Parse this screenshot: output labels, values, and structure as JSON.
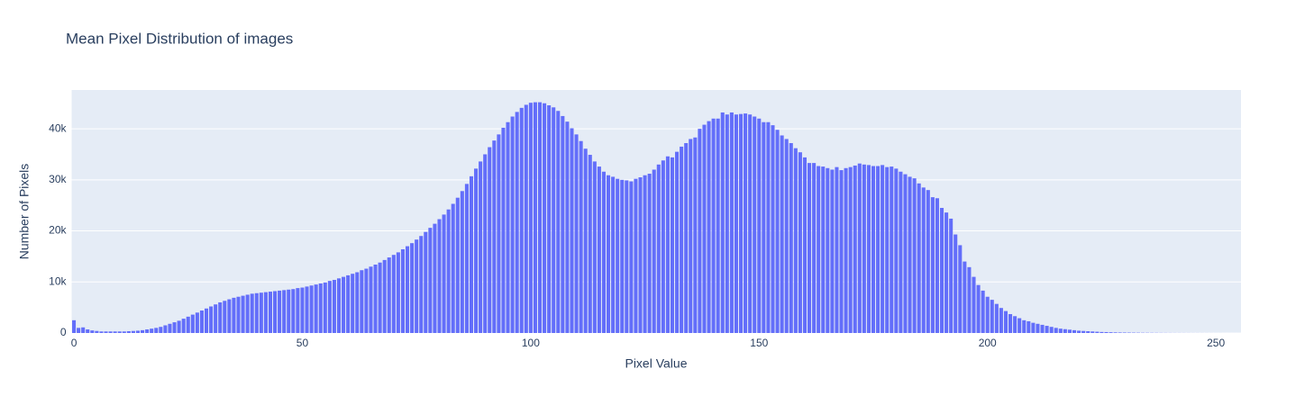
{
  "chart_data": {
    "type": "bar",
    "title": "Mean Pixel Distribution of images",
    "x_label": "Pixel Value",
    "y_label": "Number of Pixels",
    "color": "#636efa",
    "grid": true,
    "xlim": [
      -0.5,
      255.5
    ],
    "xticks": [
      0,
      50,
      100,
      150,
      200,
      250
    ],
    "ylim": [
      0,
      47600
    ],
    "yticks": [
      0,
      {
        "value": 10000,
        "label": "10k"
      },
      {
        "value": 20000,
        "label": "20k"
      },
      {
        "value": 30000,
        "label": "30k"
      },
      {
        "value": 40000,
        "label": "40k"
      }
    ],
    "x": [
      0,
      1,
      2,
      3,
      4,
      5,
      6,
      7,
      8,
      9,
      10,
      11,
      12,
      13,
      14,
      15,
      16,
      17,
      18,
      19,
      20,
      21,
      22,
      23,
      24,
      25,
      26,
      27,
      28,
      29,
      30,
      31,
      32,
      33,
      34,
      35,
      36,
      37,
      38,
      39,
      40,
      41,
      42,
      43,
      44,
      45,
      46,
      47,
      48,
      49,
      50,
      51,
      52,
      53,
      54,
      55,
      56,
      57,
      58,
      59,
      60,
      61,
      62,
      63,
      64,
      65,
      66,
      67,
      68,
      69,
      70,
      71,
      72,
      73,
      74,
      75,
      76,
      77,
      78,
      79,
      80,
      81,
      82,
      83,
      84,
      85,
      86,
      87,
      88,
      89,
      90,
      91,
      92,
      93,
      94,
      95,
      96,
      97,
      98,
      99,
      100,
      101,
      102,
      103,
      104,
      105,
      106,
      107,
      108,
      109,
      110,
      111,
      112,
      113,
      114,
      115,
      116,
      117,
      118,
      119,
      120,
      121,
      122,
      123,
      124,
      125,
      126,
      127,
      128,
      129,
      130,
      131,
      132,
      133,
      134,
      135,
      136,
      137,
      138,
      139,
      140,
      141,
      142,
      143,
      144,
      145,
      146,
      147,
      148,
      149,
      150,
      151,
      152,
      153,
      154,
      155,
      156,
      157,
      158,
      159,
      160,
      161,
      162,
      163,
      164,
      165,
      166,
      167,
      168,
      169,
      170,
      171,
      172,
      173,
      174,
      175,
      176,
      177,
      178,
      179,
      180,
      181,
      182,
      183,
      184,
      185,
      186,
      187,
      188,
      189,
      190,
      191,
      192,
      193,
      194,
      195,
      196,
      197,
      198,
      199,
      200,
      201,
      202,
      203,
      204,
      205,
      206,
      207,
      208,
      209,
      210,
      211,
      212,
      213,
      214,
      215,
      216,
      217,
      218,
      219,
      220,
      221,
      222,
      223,
      224,
      225,
      226,
      227,
      228,
      229,
      230,
      231,
      232,
      233,
      234,
      235,
      236,
      237,
      238,
      239,
      240,
      241,
      242,
      243,
      244,
      245,
      246,
      247,
      248,
      249,
      250,
      251,
      252,
      253,
      254,
      255
    ],
    "values": [
      2500,
      1000,
      1100,
      700,
      500,
      400,
      300,
      300,
      300,
      300,
      300,
      300,
      350,
      400,
      450,
      550,
      700,
      850,
      1000,
      1200,
      1500,
      1800,
      2100,
      2400,
      2800,
      3200,
      3600,
      4000,
      4400,
      4800,
      5200,
      5600,
      6000,
      6300,
      6600,
      6900,
      7100,
      7300,
      7500,
      7700,
      7800,
      7900,
      8000,
      8100,
      8200,
      8300,
      8400,
      8500,
      8600,
      8800,
      8900,
      9100,
      9300,
      9500,
      9700,
      9900,
      10200,
      10400,
      10700,
      11000,
      11300,
      11600,
      11900,
      12300,
      12600,
      13000,
      13400,
      13800,
      14300,
      14800,
      15300,
      15800,
      16400,
      17000,
      17600,
      18300,
      19000,
      19800,
      20600,
      21400,
      22300,
      23200,
      24200,
      25300,
      26500,
      27800,
      29200,
      30700,
      32200,
      33600,
      35000,
      36400,
      37700,
      38900,
      40200,
      41300,
      42400,
      43300,
      44100,
      44700,
      45100,
      45200,
      45200,
      45000,
      44600,
      44200,
      43500,
      42500,
      41400,
      40100,
      38900,
      37600,
      36100,
      34900,
      33600,
      32600,
      31600,
      30900,
      30600,
      30200,
      30000,
      29900,
      29700,
      30200,
      30500,
      30900,
      31200,
      32000,
      33000,
      33800,
      34600,
      34400,
      35500,
      36500,
      37200,
      38000,
      38300,
      40000,
      40800,
      41500,
      42000,
      42000,
      43200,
      42800,
      43200,
      42800,
      42900,
      43000,
      42800,
      42400,
      42000,
      41300,
      41300,
      40700,
      39800,
      38700,
      38000,
      37200,
      36200,
      35400,
      34400,
      33300,
      33300,
      32700,
      32600,
      32300,
      32000,
      32500,
      31900,
      32300,
      32500,
      32800,
      33200,
      33000,
      32900,
      32700,
      32700,
      32900,
      32500,
      32600,
      32200,
      31600,
      31100,
      30600,
      30300,
      29300,
      28500,
      28000,
      26600,
      26400,
      24500,
      23600,
      22400,
      19300,
      17200,
      14000,
      12900,
      11000,
      9400,
      8300,
      7100,
      6500,
      5700,
      4900,
      4300,
      3700,
      3300,
      2900,
      2500,
      2300,
      2000,
      1800,
      1600,
      1400,
      1200,
      1000,
      850,
      750,
      650,
      550,
      450,
      400,
      350,
      300,
      250,
      200,
      180,
      150,
      120,
      100,
      90,
      80,
      70,
      60,
      50,
      45,
      40,
      35,
      30,
      25,
      20,
      18,
      16,
      14,
      12,
      10,
      9,
      8,
      7,
      6,
      5,
      4,
      3,
      3,
      2,
      2
    ]
  }
}
